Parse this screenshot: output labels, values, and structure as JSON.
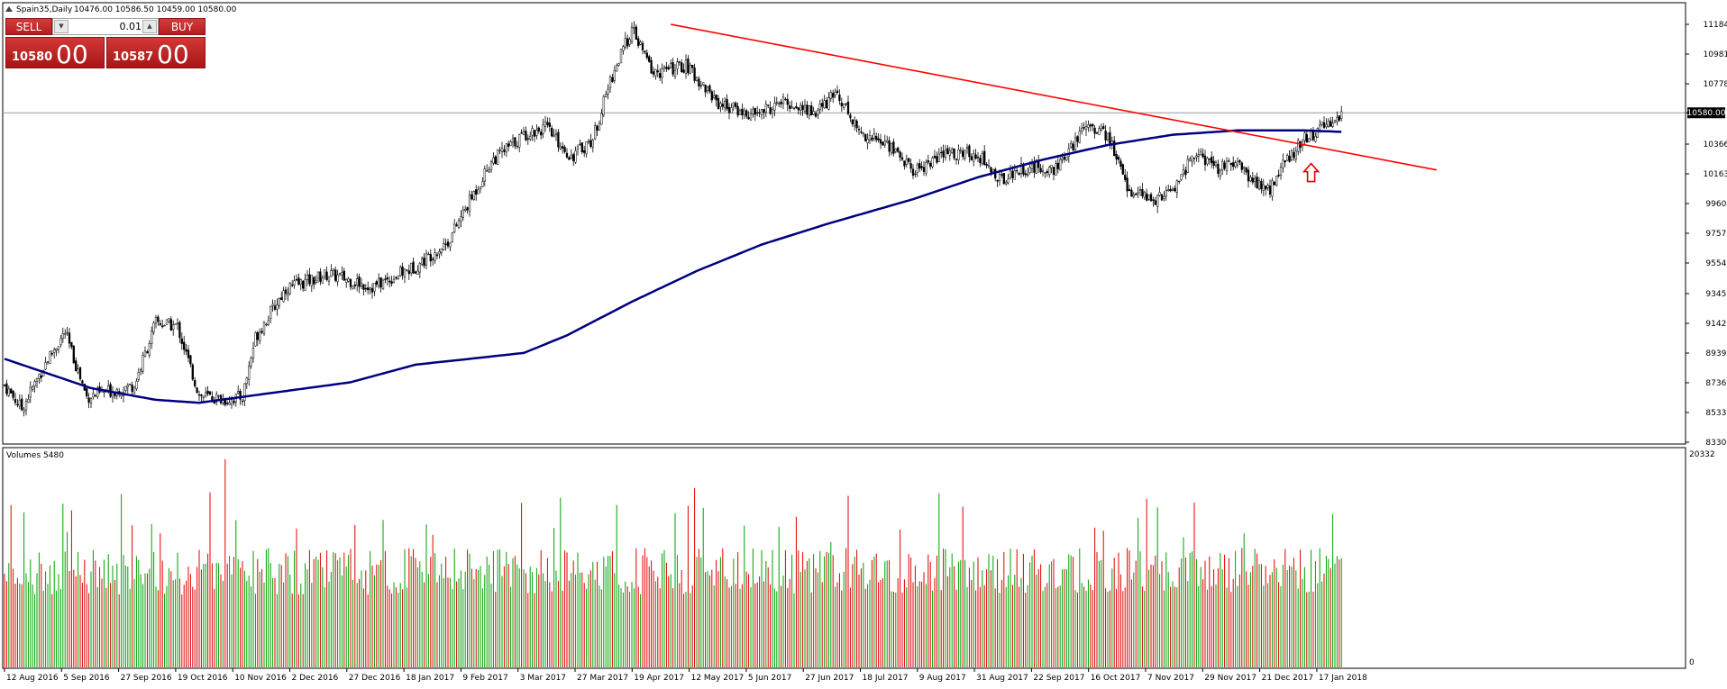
{
  "header": {
    "symbol": "Spain35,Daily",
    "ohlc": "10476.00 10586.50 10459.00 10580.00"
  },
  "trade_panel": {
    "sell_label": "SELL",
    "buy_label": "BUY",
    "lot_value": "0.01",
    "sell_price_small": "10580",
    "sell_price_big": "00",
    "buy_price_small": "10587",
    "buy_price_big": "00"
  },
  "arrow_icon": "up-arrow-icon",
  "colors": {
    "trendline": "#ff0000",
    "ma": "#00007f",
    "bull": "#00a000",
    "bear": "#e00000",
    "arrow": "#e00000"
  },
  "chart_data": [
    {
      "type": "candlestick",
      "title": "Spain35,Daily",
      "price_axis_ticks": [
        "11184.25",
        "10981.20",
        "10778.05",
        "10580.00",
        "10366.20",
        "10163.25",
        "9960.30",
        "9757.35",
        "9554.40",
        "9345.30",
        "9142.35",
        "8939.40",
        "8736.45",
        "8533.50",
        "8330.55"
      ],
      "current_price": 10580.0,
      "ylim": [
        8330.55,
        11184.25
      ],
      "date_axis_ticks": [
        "12 Aug 2016",
        "5 Sep 2016",
        "27 Sep 2016",
        "19 Oct 2016",
        "10 Nov 2016",
        "2 Dec 2016",
        "27 Dec 2016",
        "18 Jan 2017",
        "9 Feb 2017",
        "3 Mar 2017",
        "27 Mar 2017",
        "19 Apr 2017",
        "12 May 2017",
        "5 Jun 2017",
        "27 Jun 2017",
        "18 Jul 2017",
        "9 Aug 2017",
        "31 Aug 2017",
        "22 Sep 2017",
        "16 Oct 2017",
        "7 Nov 2017",
        "29 Nov 2017",
        "21 Dec 2017",
        "17 Jan 2018"
      ],
      "close_keypoints": [
        [
          0,
          8720
        ],
        [
          8,
          8560
        ],
        [
          20,
          8900
        ],
        [
          28,
          9080
        ],
        [
          38,
          8640
        ],
        [
          60,
          8720
        ],
        [
          70,
          9150
        ],
        [
          80,
          9120
        ],
        [
          90,
          8650
        ],
        [
          102,
          8620
        ],
        [
          110,
          8640
        ],
        [
          116,
          9050
        ],
        [
          130,
          9380
        ],
        [
          150,
          9480
        ],
        [
          170,
          9390
        ],
        [
          190,
          9530
        ],
        [
          205,
          9700
        ],
        [
          225,
          10250
        ],
        [
          240,
          10430
        ],
        [
          250,
          10480
        ],
        [
          262,
          10280
        ],
        [
          272,
          10400
        ],
        [
          280,
          10800
        ],
        [
          290,
          11150
        ],
        [
          300,
          10850
        ],
        [
          315,
          10900
        ],
        [
          330,
          10650
        ],
        [
          345,
          10560
        ],
        [
          360,
          10650
        ],
        [
          375,
          10580
        ],
        [
          385,
          10720
        ],
        [
          395,
          10450
        ],
        [
          410,
          10350
        ],
        [
          420,
          10180
        ],
        [
          435,
          10300
        ],
        [
          450,
          10300
        ],
        [
          460,
          10120
        ],
        [
          470,
          10200
        ],
        [
          485,
          10200
        ],
        [
          490,
          10250
        ],
        [
          500,
          10520
        ],
        [
          510,
          10420
        ],
        [
          520,
          10050
        ],
        [
          530,
          9980
        ],
        [
          540,
          10050
        ],
        [
          550,
          10300
        ],
        [
          560,
          10200
        ],
        [
          570,
          10220
        ],
        [
          580,
          10080
        ],
        [
          585,
          10050
        ],
        [
          590,
          10200
        ],
        [
          600,
          10400
        ],
        [
          610,
          10480
        ],
        [
          618,
          10580
        ]
      ],
      "moving_average_keypoints": [
        [
          0,
          8900
        ],
        [
          40,
          8700
        ],
        [
          70,
          8620
        ],
        [
          90,
          8600
        ],
        [
          130,
          8680
        ],
        [
          160,
          8740
        ],
        [
          190,
          8860
        ],
        [
          240,
          8940
        ],
        [
          260,
          9060
        ],
        [
          290,
          9290
        ],
        [
          320,
          9500
        ],
        [
          350,
          9680
        ],
        [
          380,
          9820
        ],
        [
          420,
          9990
        ],
        [
          450,
          10140
        ],
        [
          480,
          10260
        ],
        [
          510,
          10360
        ],
        [
          540,
          10430
        ],
        [
          570,
          10460
        ],
        [
          600,
          10460
        ],
        [
          618,
          10450
        ]
      ],
      "trendline": [
        [
          308,
          11184
        ],
        [
          662,
          10190
        ]
      ]
    },
    {
      "type": "bar",
      "title": "Volumes 5480",
      "ylim": [
        0,
        20332
      ],
      "y_ticks": [
        "20332",
        "0"
      ]
    }
  ]
}
